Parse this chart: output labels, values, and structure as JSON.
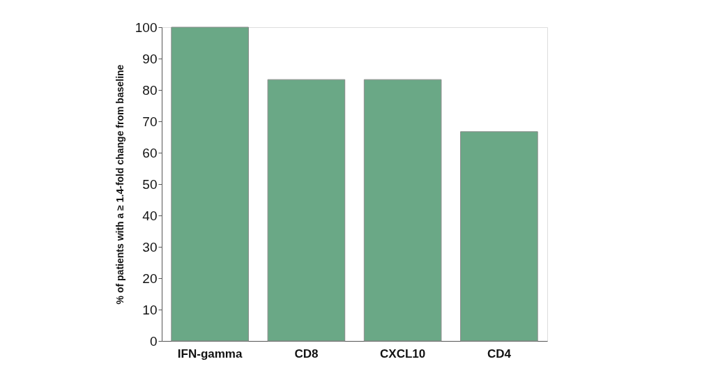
{
  "chart_data": {
    "type": "bar",
    "ylabel": "% of patients with a ≥ 1.4-fold change from baseline",
    "categories": [
      "IFN-gamma",
      "CD8",
      "CXCL10",
      "CD4"
    ],
    "values": [
      100,
      83.3,
      83.3,
      66.7
    ],
    "color": "#6aa886",
    "ylim": [
      0,
      100
    ],
    "yticks": [
      0,
      10,
      20,
      30,
      40,
      50,
      60,
      70,
      80,
      90,
      100
    ],
    "grid": false
  }
}
